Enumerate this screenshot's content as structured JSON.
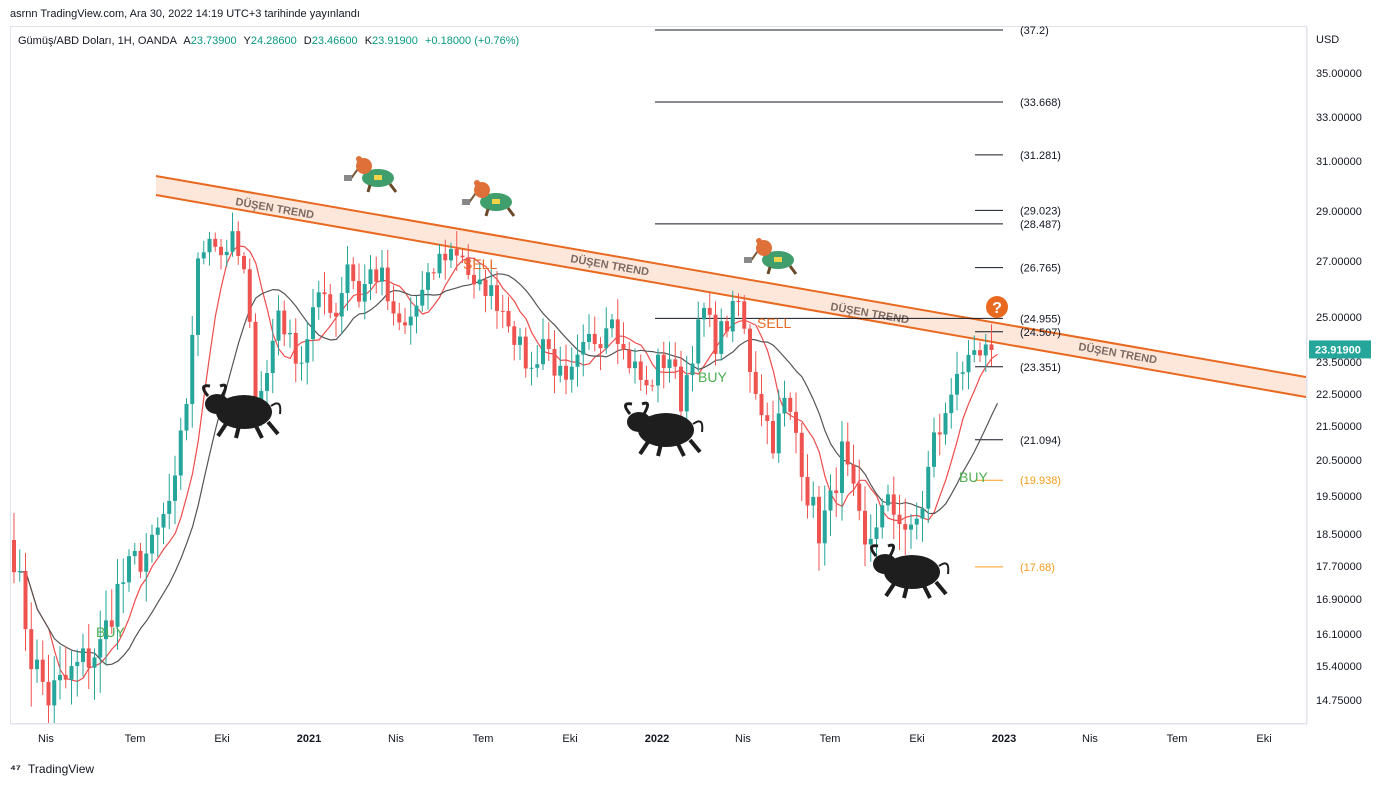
{
  "header": {
    "published": "asrnn TradingView.com, Ara 30, 2022 14:19 UTC+3 tarihinde yayınlandı"
  },
  "legend": {
    "symbol": "Gümüş/ABD Doları, 1H, OANDA",
    "open_label": "A",
    "open": "23.73900",
    "high_label": "Y",
    "high": "24.28600",
    "low_label": "D",
    "low": "23.46600",
    "close_label": "K",
    "close": "23.91900",
    "change": "+0.18000 (+0.76%)"
  },
  "footer": {
    "brand": "TradingView",
    "logo": "tradingview-logo-icon"
  },
  "colors": {
    "up": "#26a69a",
    "down": "#ef5350",
    "trend": "#e8691f",
    "trend_fill": "#fde3d3",
    "ma_fast": "#f04b4b",
    "ma_slow": "#555555",
    "buy": "#4caf50",
    "sell": "#e8691f",
    "fib_orange": "#f59c1a"
  },
  "chart_data": {
    "type": "candlestick",
    "currency": "USD",
    "last_price": "23.91900",
    "y_ticks": [
      "35.00000",
      "33.00000",
      "31.00000",
      "29.00000",
      "27.00000",
      "25.00000",
      "23.50000",
      "22.50000",
      "21.50000",
      "20.50000",
      "19.50000",
      "18.50000",
      "17.70000",
      "16.90000",
      "16.10000",
      "15.40000",
      "14.75000"
    ],
    "x_ticks": [
      {
        "label": "Nis",
        "bold": false
      },
      {
        "label": "Tem",
        "bold": false
      },
      {
        "label": "Eki",
        "bold": false
      },
      {
        "label": "2021",
        "bold": true
      },
      {
        "label": "Nis",
        "bold": false
      },
      {
        "label": "Tem",
        "bold": false
      },
      {
        "label": "Eki",
        "bold": false
      },
      {
        "label": "2022",
        "bold": true
      },
      {
        "label": "Nis",
        "bold": false
      },
      {
        "label": "Tem",
        "bold": false
      },
      {
        "label": "Eki",
        "bold": false
      },
      {
        "label": "2023",
        "bold": true
      },
      {
        "label": "Nis",
        "bold": false
      },
      {
        "label": "Tem",
        "bold": false
      },
      {
        "label": "Eki",
        "bold": false
      }
    ],
    "fib_levels": [
      {
        "label": "(37.2)",
        "value": 37.2,
        "long": true
      },
      {
        "label": "(33.668)",
        "value": 33.668,
        "long": true
      },
      {
        "label": "(31.281)",
        "value": 31.281,
        "long": false
      },
      {
        "label": "(29.023)",
        "value": 29.023,
        "long": false
      },
      {
        "label": "(28.487)",
        "value": 28.487,
        "long": true
      },
      {
        "label": "(26.765)",
        "value": 26.765,
        "long": false
      },
      {
        "label": "(24.955)",
        "value": 24.955,
        "long": true
      },
      {
        "label": "(24.507)",
        "value": 24.507,
        "long": false
      },
      {
        "label": "(23.351)",
        "value": 23.351,
        "long": false
      },
      {
        "label": "(21.094)",
        "value": 21.094,
        "long": false
      },
      {
        "label": "(19.938)",
        "value": 19.938,
        "long": false,
        "orange": true
      },
      {
        "label": "(17.68)",
        "value": 17.68,
        "long": false,
        "orange": true
      }
    ],
    "trend_label": "DÜŞEN TREND",
    "signals": [
      {
        "label": "BUY",
        "kind": "buy"
      },
      {
        "label": "SELL",
        "kind": "sell"
      },
      {
        "label": "BUY",
        "kind": "buy"
      },
      {
        "label": "SELL",
        "kind": "sell"
      },
      {
        "label": "BUY",
        "kind": "buy"
      }
    ],
    "question_mark": "?",
    "icons": [
      "bear-with-axe-icon",
      "bull-icon"
    ],
    "waypoints": [
      [
        0,
        18.0
      ],
      [
        3,
        15.6
      ],
      [
        6,
        14.8
      ],
      [
        9,
        15.1
      ],
      [
        12,
        15.5
      ],
      [
        15,
        15.8
      ],
      [
        18,
        17.1
      ],
      [
        21,
        17.8
      ],
      [
        24,
        18.1
      ],
      [
        28,
        19.7
      ],
      [
        30,
        22.3
      ],
      [
        32,
        26.8
      ],
      [
        34,
        28.2
      ],
      [
        36,
        27.3
      ],
      [
        38,
        27.8
      ],
      [
        40,
        26.5
      ],
      [
        42,
        22.5
      ],
      [
        44,
        23.1
      ],
      [
        46,
        25.3
      ],
      [
        48,
        24.1
      ],
      [
        50,
        23.6
      ],
      [
        52,
        25.2
      ],
      [
        54,
        25.8
      ],
      [
        56,
        25.1
      ],
      [
        58,
        27.0
      ],
      [
        60,
        25.7
      ],
      [
        62,
        26.6
      ],
      [
        64,
        26.4
      ],
      [
        66,
        24.8
      ],
      [
        68,
        24.6
      ],
      [
        70,
        25.4
      ],
      [
        72,
        26.2
      ],
      [
        74,
        27.1
      ],
      [
        76,
        27.4
      ],
      [
        78,
        27.3
      ],
      [
        80,
        25.9
      ],
      [
        82,
        26.1
      ],
      [
        84,
        25.6
      ],
      [
        86,
        25.0
      ],
      [
        88,
        23.9
      ],
      [
        90,
        23.2
      ],
      [
        92,
        24.3
      ],
      [
        94,
        23.4
      ],
      [
        96,
        22.6
      ],
      [
        98,
        23.4
      ],
      [
        100,
        24.2
      ],
      [
        102,
        24.4
      ],
      [
        104,
        25.3
      ],
      [
        106,
        23.8
      ],
      [
        108,
        23.3
      ],
      [
        110,
        22.6
      ],
      [
        112,
        23.4
      ],
      [
        114,
        23.7
      ],
      [
        116,
        22.3
      ],
      [
        118,
        23.9
      ],
      [
        120,
        25.2
      ],
      [
        122,
        24.2
      ],
      [
        124,
        24.8
      ],
      [
        126,
        25.5
      ],
      [
        128,
        23.4
      ],
      [
        130,
        22.1
      ],
      [
        132,
        21.1
      ],
      [
        134,
        22.2
      ],
      [
        136,
        21.3
      ],
      [
        138,
        19.6
      ],
      [
        140,
        18.6
      ],
      [
        142,
        19.3
      ],
      [
        144,
        20.7
      ],
      [
        146,
        19.4
      ],
      [
        148,
        18.0
      ],
      [
        150,
        18.9
      ],
      [
        152,
        19.2
      ],
      [
        154,
        19.0
      ],
      [
        156,
        18.4
      ],
      [
        158,
        19.3
      ],
      [
        160,
        21.1
      ],
      [
        162,
        21.7
      ],
      [
        164,
        23.4
      ],
      [
        166,
        23.3
      ],
      [
        168,
        23.6
      ],
      [
        170,
        23.9
      ]
    ],
    "ma_fast_period": 6,
    "ma_slow_period": 14
  }
}
